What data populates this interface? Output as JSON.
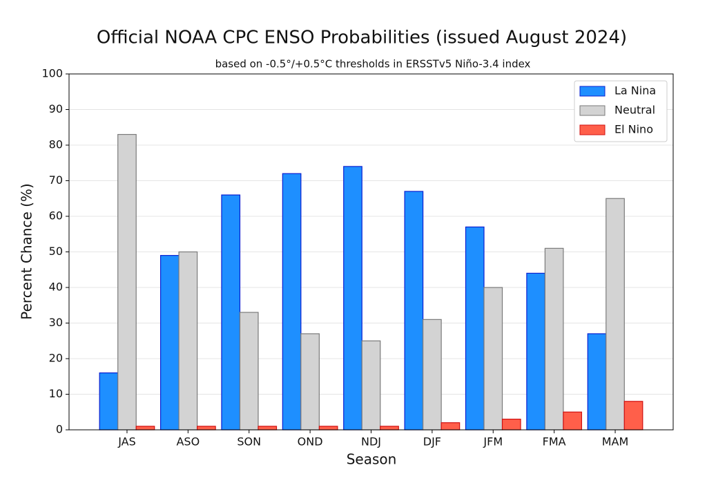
{
  "chart_data": {
    "type": "bar",
    "title": "Official NOAA CPC ENSO Probabilities (issued August 2024)",
    "subtitle": "based on -0.5°/+0.5°C thresholds in ERSSTv5 Niño-3.4 index",
    "x_label": "Season",
    "y_label": "Percent Chance (%)",
    "categories": [
      "JAS",
      "ASO",
      "SON",
      "OND",
      "NDJ",
      "DJF",
      "JFM",
      "FMA",
      "MAM"
    ],
    "series": [
      {
        "name": "La Nina",
        "color": "#1e8fff",
        "edge_color": "#0a1fd0",
        "values": [
          16,
          49,
          66,
          72,
          74,
          67,
          57,
          44,
          27
        ]
      },
      {
        "name": "Neutral",
        "color": "#d3d3d3",
        "edge_color": "#7a7a7a",
        "values": [
          83,
          50,
          33,
          27,
          25,
          31,
          40,
          51,
          65
        ]
      },
      {
        "name": "El Nino",
        "color": "#ff5f4a",
        "edge_color": "#d01010",
        "values": [
          1,
          1,
          1,
          1,
          1,
          2,
          3,
          5,
          8
        ]
      }
    ],
    "ylim": [
      0,
      100
    ],
    "yticks": [
      0,
      10,
      20,
      30,
      40,
      50,
      60,
      70,
      80,
      90,
      100
    ],
    "grid": true,
    "legend": "upper right"
  }
}
